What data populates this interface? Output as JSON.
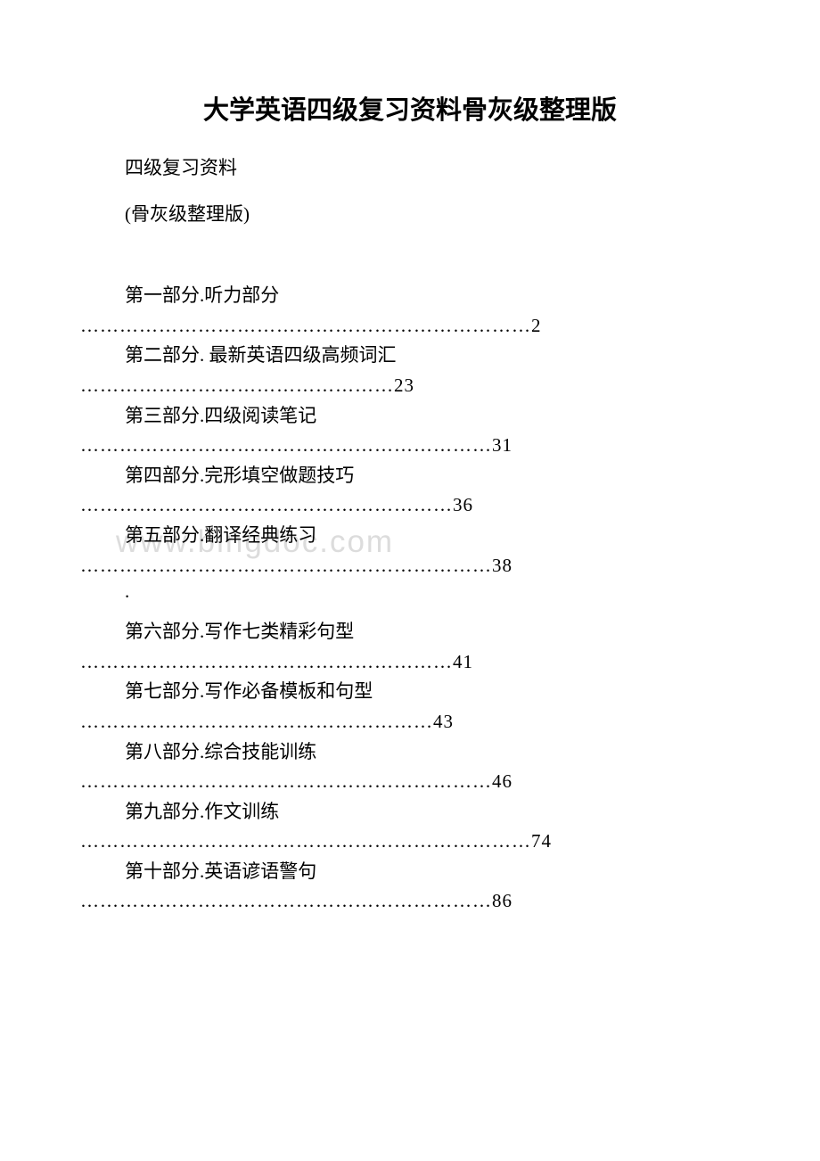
{
  "title": "大学英语四级复习资料骨灰级整理版",
  "subtitle1": "四级复习资料",
  "subtitle2": "(骨灰级整理版)",
  "watermark": "www.bingdoc.com",
  "toc": [
    {
      "label": "第一部分.听力部分",
      "dots": "……………………………………………………………2"
    },
    {
      "label": "第二部分. 最新英语四级高频词汇",
      "dots": "…………………………………………23"
    },
    {
      "label": "第三部分.四级阅读笔记",
      "dots": "………………………………………………………31"
    },
    {
      "label": "第四部分.完形填空做题技巧",
      "dots": "…………………………………………………36"
    },
    {
      "label": "第五部分.翻译经典练习",
      "dots": "………………………………………………………38"
    }
  ],
  "separator": ".",
  "toc2": [
    {
      "label": "第六部分.写作七类精彩句型",
      "dots": "…………………………………………………41"
    },
    {
      "label": "第七部分.写作必备模板和句型",
      "dots": "………………………………………………43"
    },
    {
      "label": "第八部分.综合技能训练",
      "dots": "………………………………………………………46"
    },
    {
      "label": "第九部分.作文训练",
      "dots": "……………………………………………………………74"
    },
    {
      "label": "第十部分.英语谚语警句",
      "dots": "………………………………………………………86"
    }
  ],
  "colors": {
    "background": "#ffffff",
    "text": "#000000",
    "watermark": "#dcdcdc"
  },
  "typography": {
    "title_fontsize": 29,
    "body_fontsize": 21,
    "watermark_fontsize": 35
  }
}
